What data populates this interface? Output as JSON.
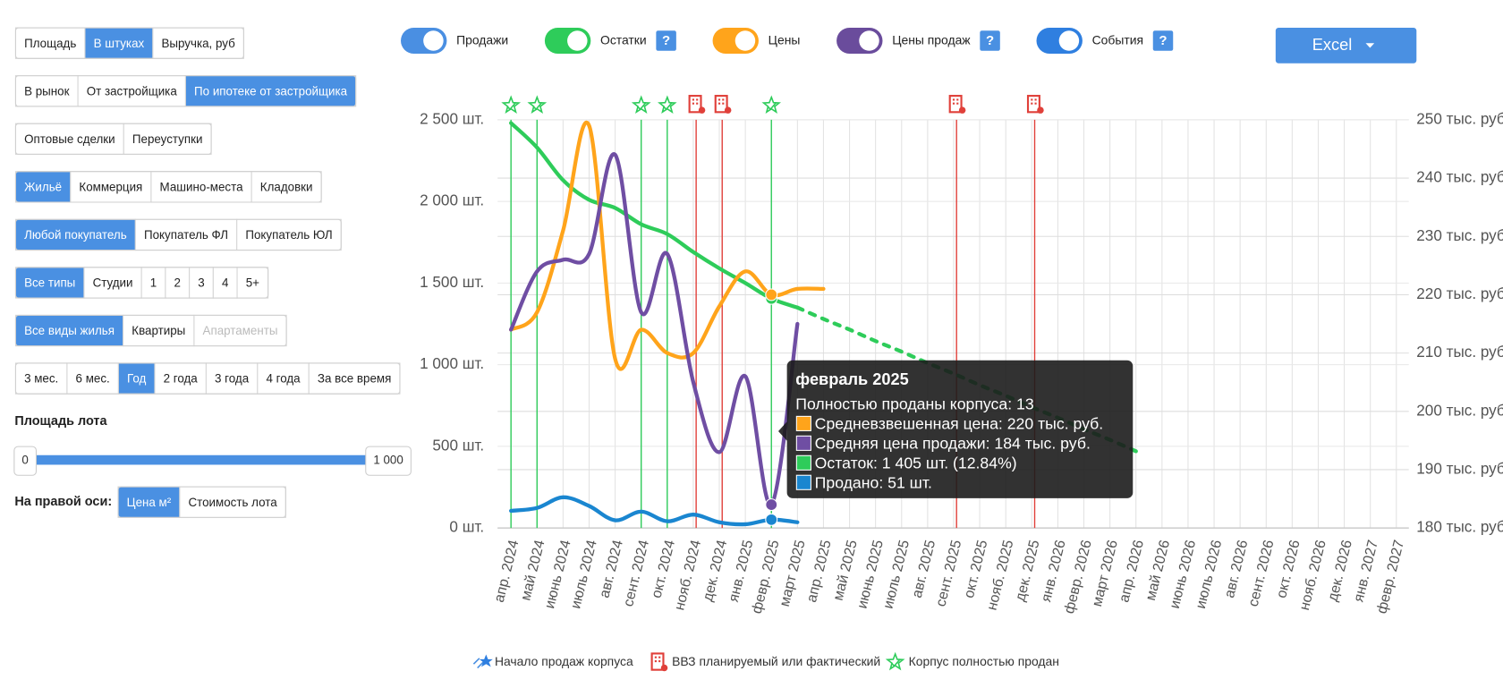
{
  "button_groups": [
    {
      "buttons": [
        "Площадь",
        "В штуках",
        "Выручка, руб"
      ],
      "active": 1
    },
    {
      "buttons": [
        "В рынок",
        "От застройщика",
        "По ипотеке от застройщика"
      ],
      "active": 2
    },
    {
      "buttons": [
        "Оптовые сделки",
        "Переуступки"
      ]
    },
    {
      "buttons": [
        "Жильё",
        "Коммерция",
        "Машино-места",
        "Кладовки"
      ],
      "active": 0
    },
    {
      "buttons": [
        "Любой покупатель",
        "Покупатель ФЛ",
        "Покупатель ЮЛ"
      ],
      "active": 0
    },
    {
      "buttons": [
        "Все типы",
        "Студии",
        "1",
        "2",
        "3",
        "4",
        "5+"
      ],
      "active": 0
    },
    {
      "buttons": [
        "Все виды жилья",
        "Квартиры",
        "Апартаменты"
      ],
      "active": 0,
      "disabled": [
        2
      ]
    },
    {
      "buttons": [
        "3 мес.",
        "6 мес.",
        "Год",
        "2 года",
        "3 года",
        "4 года",
        "За все время"
      ],
      "active": 2
    }
  ],
  "lot_area": {
    "title": "Площадь лота",
    "min_label": "0",
    "max_label": "1 000"
  },
  "right_axis": {
    "title": "На правой оси:",
    "buttons": [
      "Цена м²",
      "Стоимость лота"
    ],
    "active": 0
  },
  "help_label": "?",
  "export_button": "Excel",
  "chart_data": {
    "type": "line",
    "categories": [
      "апр. 2024",
      "май 2024",
      "июнь 2024",
      "июль 2024",
      "авг. 2024",
      "сент. 2024",
      "окт. 2024",
      "нояб. 2024",
      "дек. 2024",
      "янв. 2025",
      "февр. 2025",
      "март 2025",
      "апр. 2025",
      "май 2025",
      "июнь 2025",
      "июль 2025",
      "авг. 2025",
      "сент. 2025",
      "окт. 2025",
      "нояб. 2025",
      "дек. 2025",
      "янв. 2026",
      "февр. 2026",
      "март 2026",
      "апр. 2026",
      "май 2026",
      "июнь 2026",
      "июль 2026",
      "авг. 2026",
      "сент. 2026",
      "окт. 2026",
      "нояб. 2026",
      "дек. 2026",
      "янв. 2027",
      "февр. 2027"
    ],
    "ylim": [
      0,
      2500
    ],
    "yticks": [
      {
        "value": 0,
        "label": "0 шт."
      },
      {
        "value": 500,
        "label": "500 шт."
      },
      {
        "value": 1000,
        "label": "1 000 шт."
      },
      {
        "value": 1500,
        "label": "1 500 шт."
      },
      {
        "value": 2000,
        "label": "2 000 шт."
      },
      {
        "value": 2500,
        "label": "2 500 шт."
      }
    ],
    "y2lim": [
      180,
      250
    ],
    "y2ticks": [
      {
        "value": 180,
        "label": "180 тыс. руб."
      },
      {
        "value": 190,
        "label": "190 тыс. руб."
      },
      {
        "value": 200,
        "label": "200 тыс. руб."
      },
      {
        "value": 210,
        "label": "210 тыс. руб."
      },
      {
        "value": 220,
        "label": "220 тыс. руб."
      },
      {
        "value": 230,
        "label": "230 тыс. руб."
      },
      {
        "value": 240,
        "label": "240 тыс. руб."
      },
      {
        "value": 250,
        "label": "250 тыс. руб."
      }
    ],
    "grid": true,
    "series": [
      {
        "name": "Продажи",
        "color": "#1a86d0",
        "toggle_color": "#4a8fe2",
        "help": false,
        "axis": "y",
        "values": [
          105,
          123,
          188,
          135,
          47,
          100,
          41,
          82,
          35,
          23,
          51,
          35,
          null,
          null,
          null,
          null,
          null,
          null,
          null,
          null,
          null,
          null,
          null,
          null,
          null,
          null,
          null,
          null,
          null,
          null,
          null,
          null,
          null,
          null,
          null
        ]
      },
      {
        "name": "Остатки",
        "color": "#2ecc5a",
        "toggle_color": "#2ecc5a",
        "help": true,
        "axis": "y",
        "values": [
          2480,
          2330,
          2130,
          2010,
          1960,
          1860,
          1800,
          1690,
          1590,
          1500,
          1405,
          1350,
          null,
          null,
          null,
          null,
          null,
          null,
          null,
          null,
          null,
          null,
          null,
          null,
          null,
          null,
          null,
          null,
          null,
          null,
          null,
          null,
          null,
          null,
          null
        ]
      },
      {
        "color": "#2ecc5a",
        "dashed": true,
        "axis": "y",
        "values": [
          null,
          null,
          null,
          null,
          null,
          null,
          null,
          null,
          null,
          null,
          null,
          1350,
          1280,
          1215,
          1145,
          1080,
          1010,
          945,
          875,
          810,
          740,
          675,
          605,
          540,
          470,
          null,
          null,
          null,
          null,
          null,
          null,
          null,
          null,
          null,
          null
        ]
      },
      {
        "name": "Цены",
        "color": "#ffa41b",
        "toggle_color": "#ffa41b",
        "help": false,
        "axis": "y2",
        "values": [
          214,
          217,
          231,
          249,
          209,
          214,
          210,
          210,
          218,
          224,
          220,
          221,
          221,
          null,
          null,
          null,
          null,
          null,
          null,
          null,
          null,
          null,
          null,
          null,
          null,
          null,
          null,
          null,
          null,
          null,
          null,
          null,
          null,
          null,
          null
        ]
      },
      {
        "name": "Цены продаж",
        "color": "#6f4ea3",
        "toggle_color": "#6a4c9c",
        "help": true,
        "axis": "y2",
        "values": [
          214,
          224,
          226,
          227,
          244,
          217,
          227,
          205,
          193,
          206,
          184,
          215,
          null,
          null,
          null,
          null,
          null,
          null,
          null,
          null,
          null,
          null,
          null,
          null,
          null,
          null,
          null,
          null,
          null,
          null,
          null,
          null,
          null,
          null,
          null
        ]
      }
    ],
    "events_label": "События",
    "events_color": "#2f7fe0",
    "events_help": true,
    "sold_events": [
      "апр. 2024",
      "май 2024",
      "сент. 2024",
      "окт. 2024",
      "февр. 2025"
    ],
    "sold_color": "#2ecc5a",
    "vvz_events": [
      "нояб. 2024",
      "дек. 2024",
      "сент. 2025",
      "дек. 2025"
    ],
    "vvz_color": "#e0403a",
    "highlight": "февр. 2025"
  },
  "tooltip": {
    "title": "февраль 2025",
    "lines": [
      {
        "text": "Полностью проданы корпуса: 13"
      },
      {
        "text": "Средневзвешенная цена: 220 тыс. руб.",
        "color": "#ffa41b"
      },
      {
        "text": "Средняя цена продажи: 184 тыс. руб.",
        "color": "#6f4ea3"
      },
      {
        "text": "Остаток: 1 405 шт. (12.84%)",
        "color": "#2ecc5a"
      },
      {
        "text": "Продано: 51 шт.",
        "color": "#1a86d0"
      }
    ]
  },
  "event_legend": [
    "Начало продаж корпуса",
    "ВВЗ планируемый или фактический",
    "Корпус полностью продан"
  ]
}
